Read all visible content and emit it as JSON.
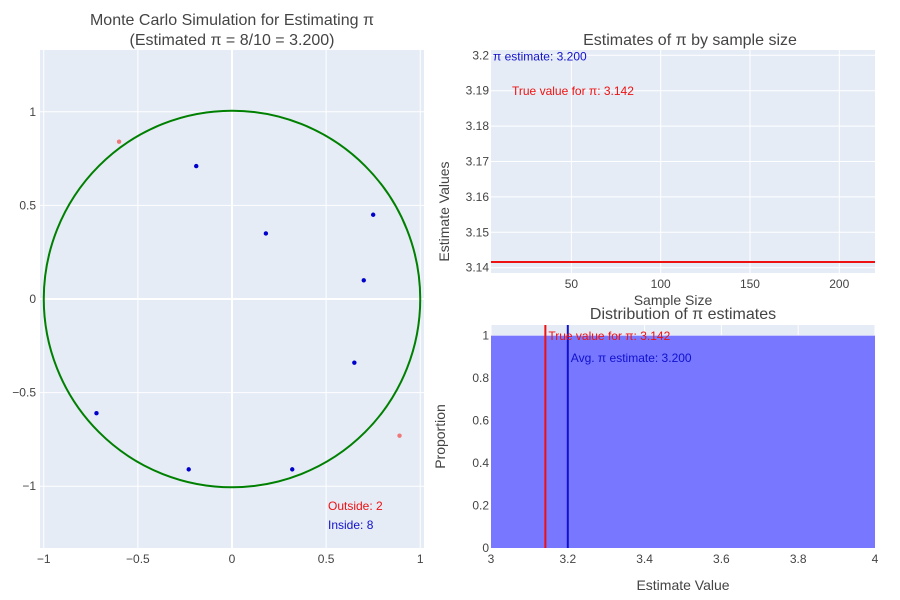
{
  "colors": {
    "plot_bg": "#e5ecf6",
    "grid": "#ffffff",
    "inside": "#0000cc",
    "outside": "#ef7777",
    "circle": "#008000",
    "true_pi": "#ee1111",
    "estimate": "#1111cc",
    "hist_fill": "#7777ff"
  },
  "chart_data": [
    {
      "type": "scatter",
      "title_line1": "Monte Carlo Simulation for Estimating π",
      "title_line2": "(Estimated π = 8/10 = 3.200)",
      "xlim": [
        -1.02,
        1.02
      ],
      "ylim": [
        -1.33,
        1.33
      ],
      "x_ticks": [
        -1,
        -0.5,
        0,
        0.5,
        1
      ],
      "x_tick_labels": [
        "−1",
        "−0.5",
        "0",
        "0.5",
        "1"
      ],
      "y_ticks": [
        -1,
        -0.5,
        0,
        0.5,
        1
      ],
      "y_tick_labels": [
        "−1",
        "−0.5",
        "0",
        "0.5",
        "1"
      ],
      "inside_points": [
        [
          -0.19,
          0.71
        ],
        [
          0.18,
          0.35
        ],
        [
          0.75,
          0.45
        ],
        [
          0.7,
          0.1
        ],
        [
          0.65,
          -0.34
        ],
        [
          -0.72,
          -0.61
        ],
        [
          -0.23,
          -0.91
        ],
        [
          0.32,
          -0.91
        ]
      ],
      "outside_points": [
        [
          -0.6,
          0.84
        ],
        [
          0.89,
          -0.73
        ]
      ],
      "outside_label": "Outside: 2",
      "inside_label": "Inside: 8"
    },
    {
      "type": "line",
      "title": "Estimates of π by sample size",
      "xlabel": "Sample Size",
      "ylabel": "Estimate Values",
      "xlim": [
        5,
        220
      ],
      "ylim": [
        3.1385,
        3.2015
      ],
      "x_ticks": [
        50,
        100,
        150,
        200
      ],
      "x_tick_labels": [
        "50",
        "100",
        "150",
        "200"
      ],
      "y_ticks": [
        3.14,
        3.15,
        3.16,
        3.17,
        3.18,
        3.19,
        3.2
      ],
      "y_tick_labels": [
        "3.14",
        "3.15",
        "3.16",
        "3.17",
        "3.18",
        "3.19",
        "3.2"
      ],
      "true_value": 3.14159,
      "estimate_value": 3.2,
      "estimate_label": "π estimate: 3.200",
      "true_label": "True value for π: 3.142"
    },
    {
      "type": "bar",
      "title": "Distribution of π estimates",
      "xlabel": "Estimate Value",
      "ylabel": "Proportion",
      "xlim": [
        3,
        4
      ],
      "ylim": [
        0,
        1.05
      ],
      "x_ticks": [
        3,
        3.2,
        3.4,
        3.6,
        3.8,
        4
      ],
      "x_tick_labels": [
        "3",
        "3.2",
        "3.4",
        "3.6",
        "3.8",
        "4"
      ],
      "y_ticks": [
        0,
        0.2,
        0.4,
        0.6,
        0.8,
        1
      ],
      "y_tick_labels": [
        "0",
        "0.2",
        "0.4",
        "0.6",
        "0.8",
        "1"
      ],
      "bins": [
        {
          "x0": 3,
          "x1": 4,
          "value": 1
        }
      ],
      "true_value": 3.14159,
      "avg_value": 3.2,
      "true_label": "True value for π: 3.142",
      "avg_label": "Avg. π estimate: 3.200"
    }
  ]
}
